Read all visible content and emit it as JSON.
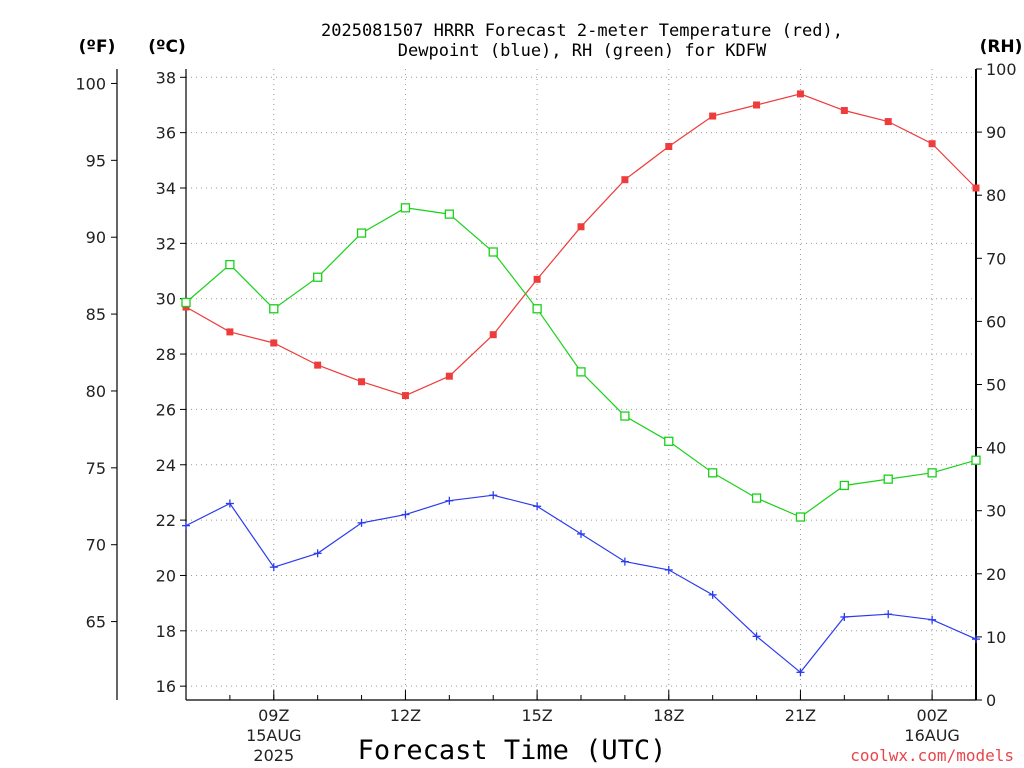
{
  "colors": {
    "temperature": "#ee3b3b",
    "dewpoint": "#2a3bee",
    "rh": "#19d119",
    "credit": "#e8454a",
    "grid": "#999999"
  },
  "chart_data": {
    "type": "line",
    "title_line1": "2025081507 HRRR Forecast 2-meter Temperature (red),",
    "title_line2": "Dewpoint (blue), RH (green) for KDFW",
    "xlabel": "Forecast Time (UTC)",
    "credit": "coolwx.com/models",
    "unit_f": "(ºF)",
    "unit_c": "(ºC)",
    "unit_rh": "(RH)",
    "x_hours": [
      7,
      8,
      9,
      10,
      11,
      12,
      13,
      14,
      15,
      16,
      17,
      18,
      19,
      20,
      21,
      22,
      23,
      24,
      25
    ],
    "xlim_hours": [
      7,
      25
    ],
    "x_ticks": [
      {
        "hour": 9,
        "label": "09Z",
        "sub1": "15AUG",
        "sub2": "2025"
      },
      {
        "hour": 12,
        "label": "12Z"
      },
      {
        "hour": 15,
        "label": "15Z"
      },
      {
        "hour": 18,
        "label": "18Z"
      },
      {
        "hour": 21,
        "label": "21Z"
      },
      {
        "hour": 24,
        "label": "00Z",
        "sub1": "16AUG"
      }
    ],
    "celsius_axis": {
      "min": 15.5,
      "max": 38.3,
      "ticks": [
        16,
        18,
        20,
        22,
        24,
        26,
        28,
        30,
        32,
        34,
        36,
        38
      ]
    },
    "fahrenheit_axis": {
      "ticks": [
        65,
        70,
        75,
        80,
        85,
        90,
        95,
        100
      ]
    },
    "rh_axis": {
      "min": 0,
      "max": 100,
      "ticks": [
        0,
        10,
        20,
        30,
        40,
        50,
        60,
        70,
        80,
        90,
        100
      ]
    },
    "series": [
      {
        "key": "temperature",
        "unit": "C",
        "marker": "filled-square",
        "values": [
          29.7,
          28.8,
          28.4,
          27.6,
          27.0,
          26.5,
          27.2,
          28.7,
          30.7,
          32.6,
          34.3,
          35.5,
          36.6,
          37.0,
          37.4,
          36.8,
          36.4,
          35.6,
          34.0
        ]
      },
      {
        "key": "dewpoint",
        "unit": "C",
        "marker": "plus",
        "values": [
          21.8,
          22.6,
          20.3,
          20.8,
          21.9,
          22.2,
          22.7,
          22.9,
          22.5,
          21.5,
          20.5,
          20.2,
          19.3,
          17.8,
          16.5,
          18.5,
          18.6,
          18.4,
          17.7
        ]
      },
      {
        "key": "rh",
        "unit": "RH",
        "marker": "open-square",
        "values": [
          63,
          69,
          62,
          67,
          74,
          78,
          77,
          71,
          62,
          52,
          45,
          41,
          36,
          32,
          29,
          34,
          35,
          36,
          38
        ]
      }
    ]
  }
}
